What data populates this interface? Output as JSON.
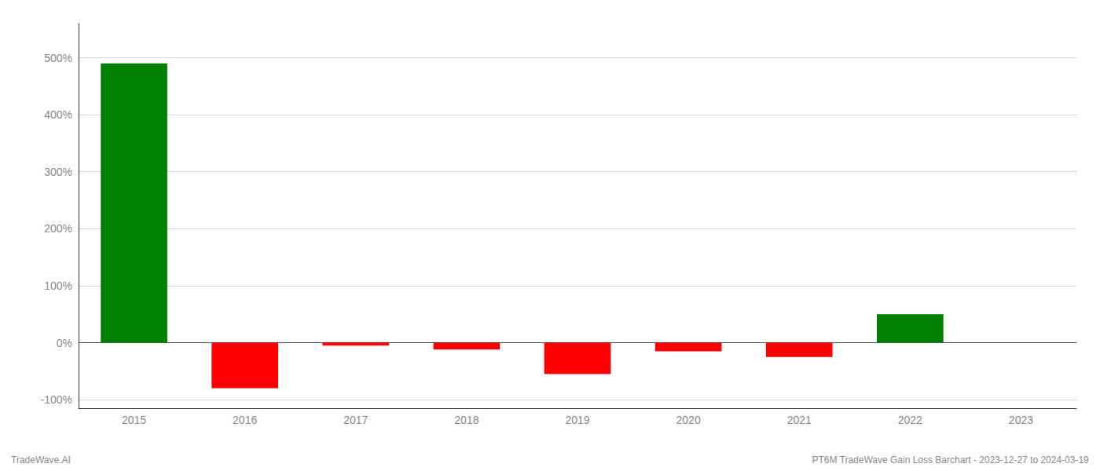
{
  "chart_data": {
    "type": "bar",
    "categories": [
      "2015",
      "2016",
      "2017",
      "2018",
      "2019",
      "2020",
      "2021",
      "2022",
      "2023"
    ],
    "values": [
      490,
      -80,
      -5,
      -12,
      -55,
      -15,
      -25,
      50,
      0
    ],
    "colors": [
      "#008000",
      "#ff0000",
      "#ff0000",
      "#ff0000",
      "#ff0000",
      "#ff0000",
      "#ff0000",
      "#008000",
      "#ff0000"
    ],
    "ylim": [
      -115,
      560
    ],
    "yticks": [
      {
        "value": -100,
        "label": "-100%"
      },
      {
        "value": 0,
        "label": "0%"
      },
      {
        "value": 100,
        "label": "100%"
      },
      {
        "value": 200,
        "label": "200%"
      },
      {
        "value": 300,
        "label": "300%"
      },
      {
        "value": 400,
        "label": "400%"
      },
      {
        "value": 500,
        "label": "500%"
      }
    ],
    "grid": true,
    "annotations": [
      "TradeWave.AI",
      "PT6M TradeWave Gain Loss Barchart - 2023-12-27 to 2024-03-19"
    ]
  }
}
